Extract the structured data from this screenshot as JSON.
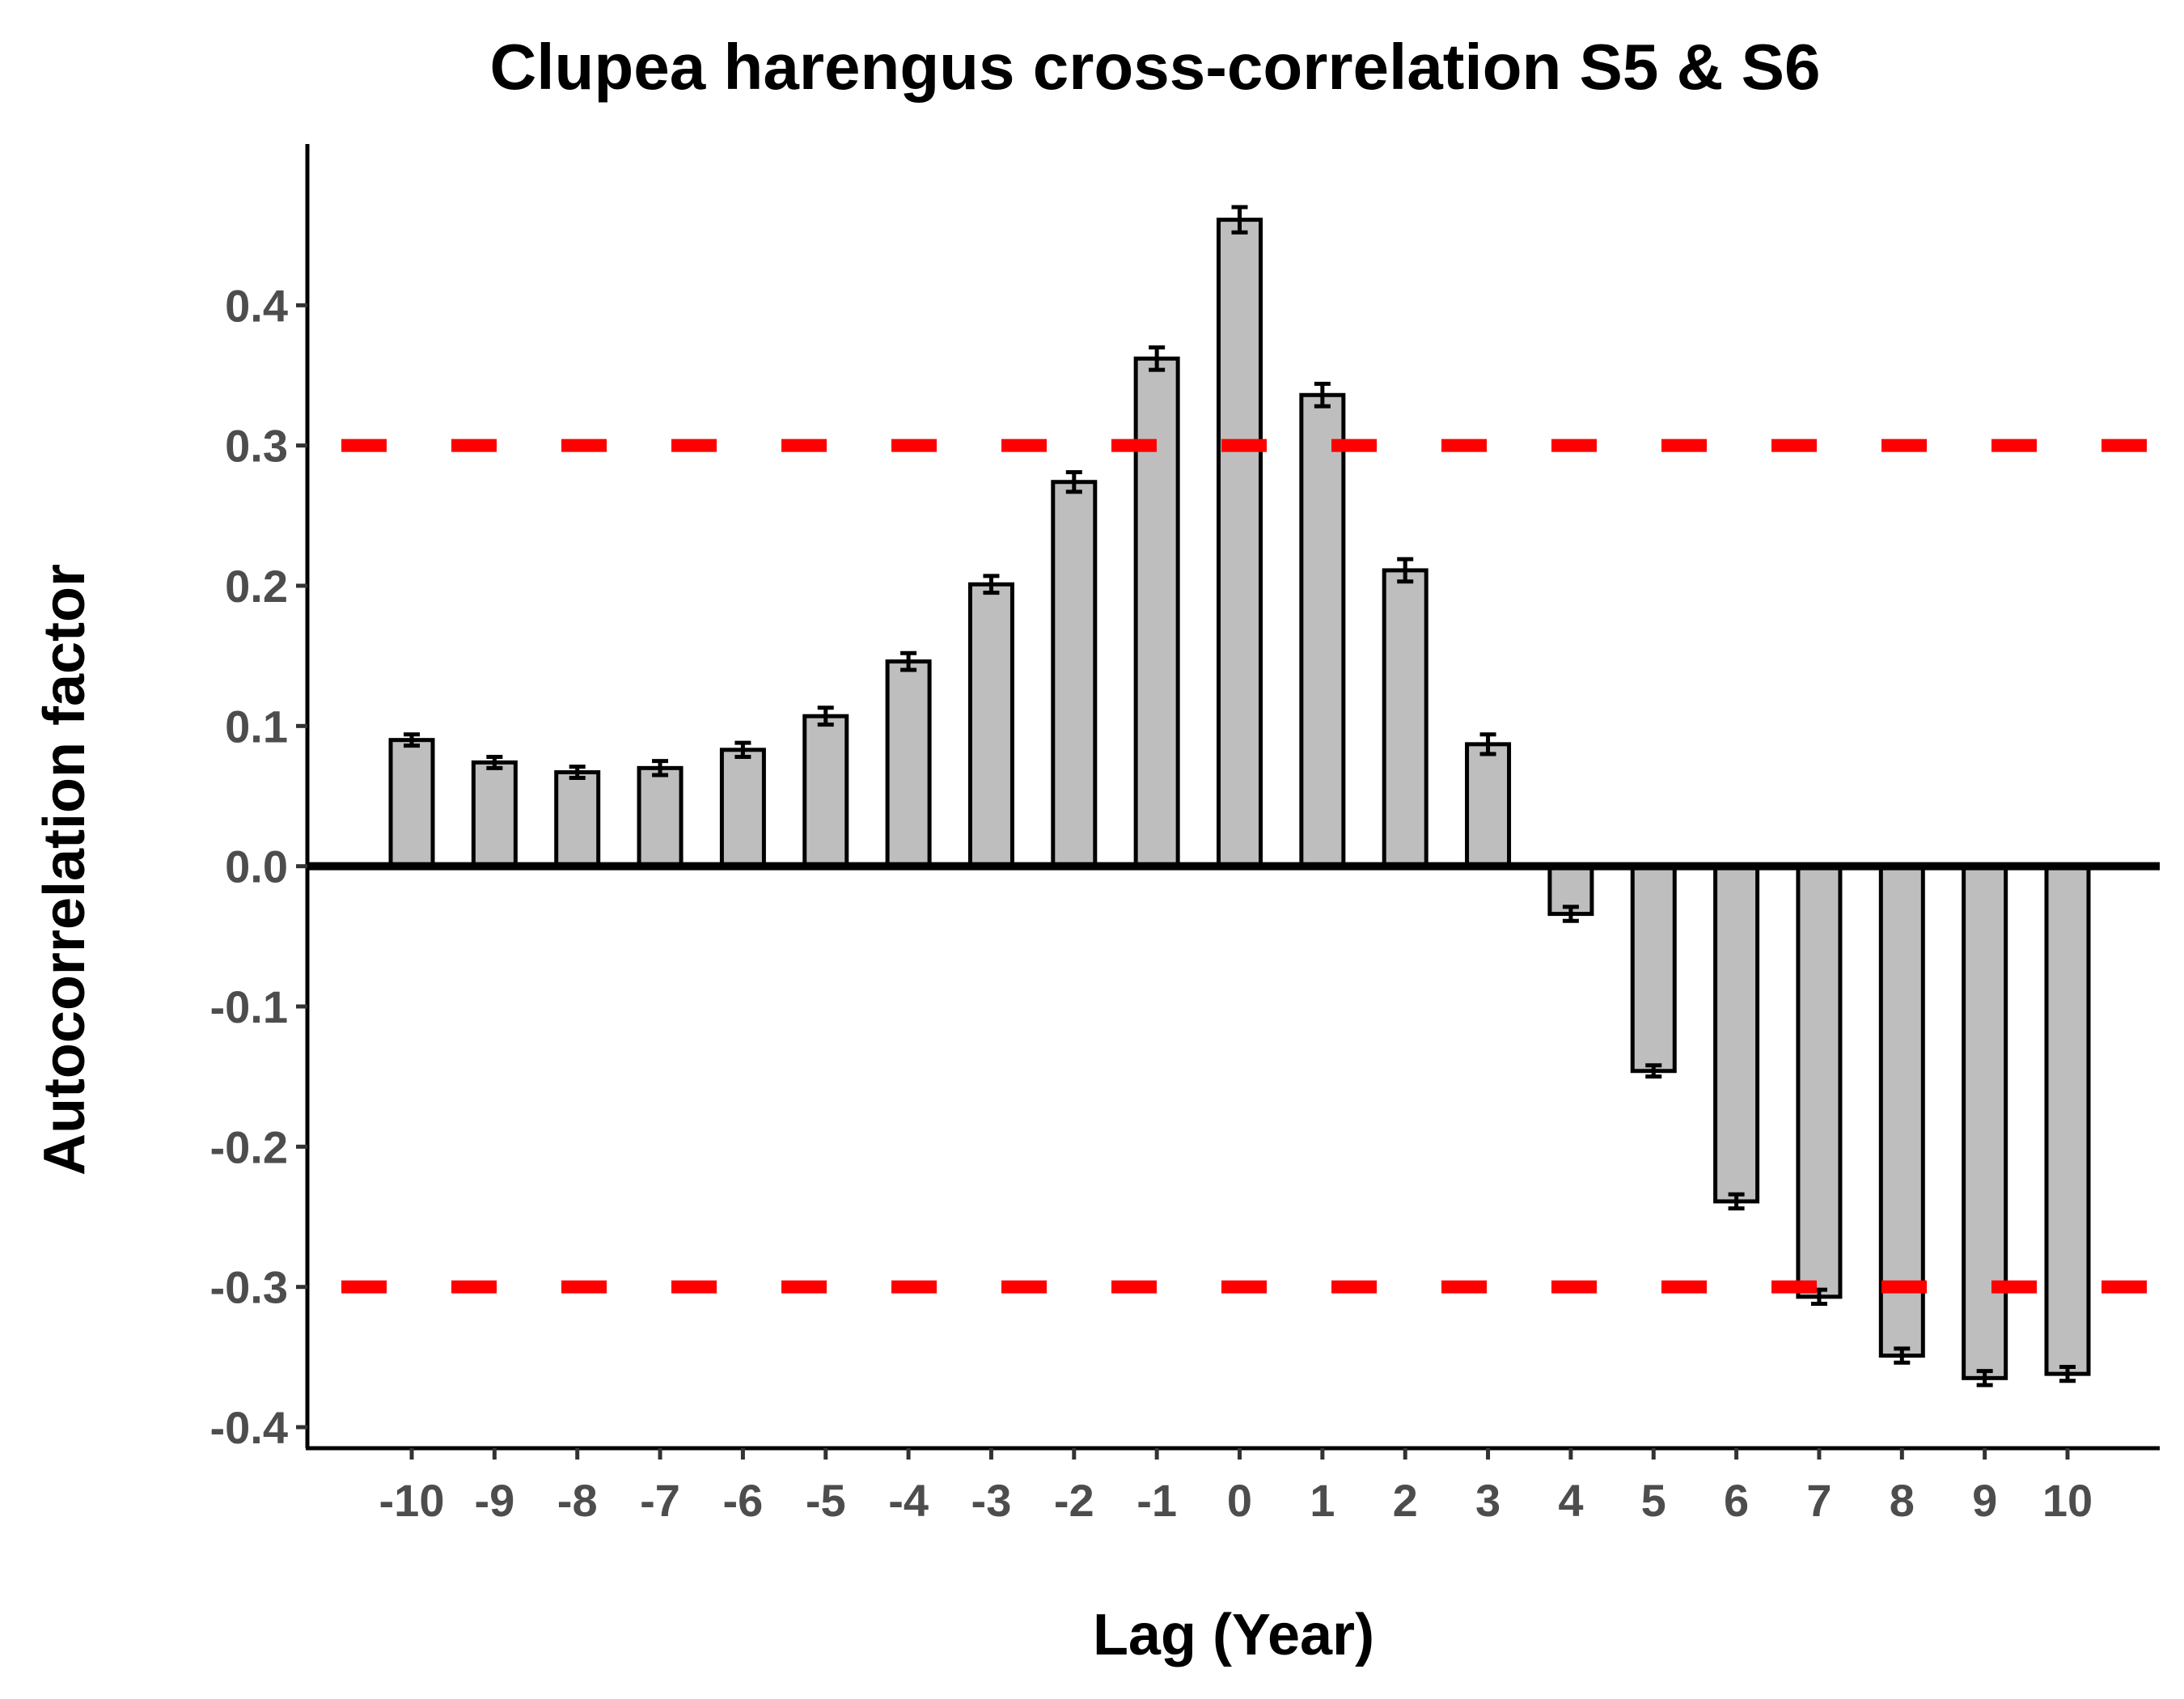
{
  "chart_data": {
    "type": "bar",
    "title": "Clupea harengus cross-correlation S5 & S6",
    "xlabel": "Lag (Year)",
    "ylabel": "Autocorrelation factor",
    "categories": [
      "-10",
      "-9",
      "-8",
      "-7",
      "-6",
      "-5",
      "-4",
      "-3",
      "-2",
      "-1",
      "0",
      "1",
      "2",
      "3",
      "4",
      "5",
      "6",
      "7",
      "8",
      "9",
      "10"
    ],
    "values": [
      0.09,
      0.074,
      0.067,
      0.07,
      0.083,
      0.107,
      0.146,
      0.201,
      0.274,
      0.362,
      0.461,
      0.336,
      0.211,
      0.087,
      -0.034,
      -0.146,
      -0.239,
      -0.307,
      -0.349,
      -0.365,
      -0.362
    ],
    "error": [
      0.004,
      0.004,
      0.004,
      0.005,
      0.005,
      0.006,
      0.006,
      0.006,
      0.007,
      0.008,
      0.009,
      0.008,
      0.008,
      0.007,
      0.005,
      0.004,
      0.005,
      0.005,
      0.005,
      0.005,
      0.005
    ],
    "ylim": [
      -0.415,
      0.515
    ],
    "yticks": [
      -0.4,
      -0.3,
      -0.2,
      -0.1,
      0.0,
      0.1,
      0.2,
      0.3,
      0.4
    ],
    "ytick_labels": [
      "-0.4",
      "-0.3",
      "-0.2",
      "-0.1",
      "0.0",
      "0.1",
      "0.2",
      "0.3",
      "0.4"
    ],
    "reference_lines": [
      0.3,
      -0.3
    ],
    "reference_line_color": "#ff0000",
    "bar_fill": "#bebebe",
    "bar_stroke": "#000000",
    "zero_line_color": "#000000",
    "grid": false
  }
}
